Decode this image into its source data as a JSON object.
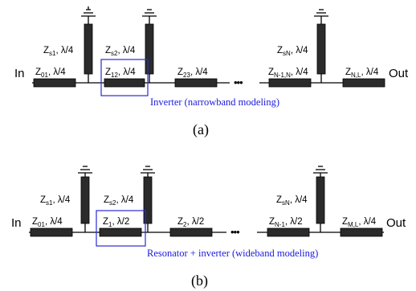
{
  "panel_a": {
    "in_label": "In",
    "out_label": "Out",
    "ellipsis": "•••",
    "shunts": [
      {
        "z": "Z",
        "sub": "s1",
        "len": ", λ/4"
      },
      {
        "z": "Z",
        "sub": "s2",
        "len": ", λ/4"
      },
      {
        "z": "Z",
        "sub": "sN",
        "len": ", λ/4"
      }
    ],
    "series": [
      {
        "z": "Z",
        "sub": "01",
        "len": ", λ/4"
      },
      {
        "z": "Z",
        "sub": "12",
        "len": ", λ/4"
      },
      {
        "z": "Z",
        "sub": "23",
        "len": ", λ/4"
      },
      {
        "z": "Z",
        "sub": "N-1,N",
        "len": ", λ/4"
      },
      {
        "z": "Z",
        "sub": "N,L",
        "len": ", λ/4"
      }
    ],
    "note": "Inverter (narrowband modeling)",
    "caption": "(a)"
  },
  "panel_b": {
    "in_label": "In",
    "out_label": "Out",
    "ellipsis": "•••",
    "shunts": [
      {
        "z": "Z",
        "sub": "s1",
        "len": ", λ/4"
      },
      {
        "z": "Z",
        "sub": "s2",
        "len": ", λ/4"
      },
      {
        "z": "Z",
        "sub": "sN",
        "len": ", λ/4"
      }
    ],
    "series": [
      {
        "z": "Z",
        "sub": "01",
        "len": ", λ/4"
      },
      {
        "z": "Z",
        "sub": "1",
        "len": ", λ/2"
      },
      {
        "z": "Z",
        "sub": "2",
        "len": ", λ/2"
      },
      {
        "z": "Z",
        "sub": "N-1",
        "len": ", λ/2"
      },
      {
        "z": "Z",
        "sub": "M,L",
        "len": ", λ/4"
      }
    ],
    "note": "Resonator + inverter (wideband modeling)",
    "caption": "(b)"
  },
  "colors": {
    "line": "#2b2b2b",
    "highlight_box": "#2a2ad6",
    "note_text": "#1a1adb"
  }
}
